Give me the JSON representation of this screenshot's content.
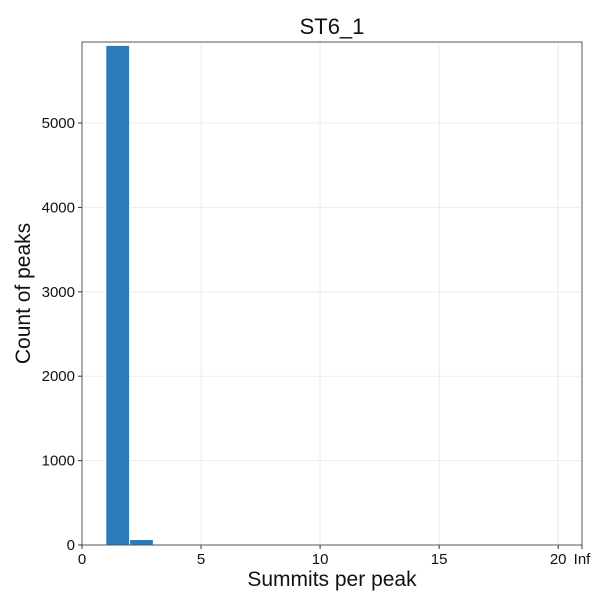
{
  "chart_data": {
    "type": "bar",
    "title": "ST6_1",
    "xlabel": "Summits per peak",
    "ylabel": "Count of peaks",
    "xlim": [
      0,
      21
    ],
    "ylim": [
      0,
      5960
    ],
    "x_ticks": [
      {
        "value": 0,
        "label": "0"
      },
      {
        "value": 5,
        "label": "5"
      },
      {
        "value": 10,
        "label": "10"
      },
      {
        "value": 15,
        "label": "15"
      },
      {
        "value": 20,
        "label": "20"
      },
      {
        "value": 21,
        "label": "Inf"
      }
    ],
    "y_ticks": [
      {
        "value": 0,
        "label": "0"
      },
      {
        "value": 1000,
        "label": "1000"
      },
      {
        "value": 2000,
        "label": "2000"
      },
      {
        "value": 3000,
        "label": "3000"
      },
      {
        "value": 4000,
        "label": "4000"
      },
      {
        "value": 5000,
        "label": "5000"
      }
    ],
    "bins": [
      {
        "start": 1,
        "end": 2,
        "value": 5920
      },
      {
        "start": 2,
        "end": 3,
        "value": 65
      },
      {
        "start": 3,
        "end": 4,
        "value": 12
      },
      {
        "start": 4,
        "end": 5,
        "value": 4
      },
      {
        "start": 5,
        "end": 6,
        "value": 2
      }
    ],
    "grid": true,
    "bar_color": "#2b7bba"
  }
}
